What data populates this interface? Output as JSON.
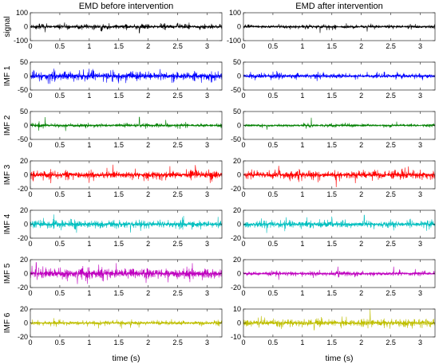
{
  "chart_data": [
    {
      "type": "line",
      "title": "EMD before intervention",
      "xlabel": "time (s)",
      "xlim": [
        0,
        3.25
      ],
      "xticks": [
        "0",
        "0.5",
        "1",
        "1.5",
        "2",
        "2.5",
        "3"
      ],
      "panels": [
        {
          "ylabel": "signal",
          "ylim": [
            -100,
            100
          ],
          "yticks": [
            "100",
            "0",
            "-100"
          ],
          "amplitude": 25,
          "spikes": [
            [
              0.25,
              -40
            ],
            [
              0.58,
              30
            ],
            [
              1.2,
              -30
            ],
            [
              1.85,
              -45
            ],
            [
              2.5,
              25
            ]
          ],
          "color": "#000000"
        },
        {
          "ylabel": "IMF 1",
          "ylim": [
            -50,
            50
          ],
          "yticks": [
            "50",
            "0",
            "-50"
          ],
          "amplitude": 24,
          "spikes": [
            [
              0.3,
              -28
            ],
            [
              0.9,
              24
            ],
            [
              1.5,
              -26
            ],
            [
              2.2,
              25
            ],
            [
              2.9,
              -24
            ]
          ],
          "color": "#0000ff"
        },
        {
          "ylabel": "IMF 2",
          "ylim": [
            -50,
            50
          ],
          "yticks": [
            "50",
            "0",
            "-50"
          ],
          "amplitude": 10,
          "spikes": [
            [
              0.25,
              30
            ],
            [
              0.6,
              -20
            ],
            [
              1.85,
              30
            ],
            [
              2.3,
              20
            ]
          ],
          "color": "#008000"
        },
        {
          "ylabel": "IMF 3",
          "ylim": [
            -20,
            20
          ],
          "yticks": [
            "20",
            "0",
            "-20"
          ],
          "amplitude": 9,
          "spikes": [
            [
              0.35,
              -12
            ],
            [
              1.3,
              10
            ],
            [
              2.8,
              14
            ]
          ],
          "color": "#ff0000"
        },
        {
          "ylabel": "IMF 4",
          "ylim": [
            -20,
            20
          ],
          "yticks": [
            "20",
            "0",
            "-20"
          ],
          "amplitude": 9,
          "spikes": [
            [
              0.4,
              14
            ],
            [
              1.7,
              -12
            ],
            [
              2.6,
              12
            ]
          ],
          "color": "#00bfbf"
        },
        {
          "ylabel": "IMF 5",
          "ylim": [
            -20,
            20
          ],
          "yticks": [
            "20",
            "0",
            "-20"
          ],
          "amplitude": 12,
          "spikes": [
            [
              0.1,
              16
            ],
            [
              0.8,
              -15
            ],
            [
              2.75,
              15
            ]
          ],
          "color": "#bf00bf"
        },
        {
          "ylabel": "IMF 6",
          "ylim": [
            -20,
            20
          ],
          "yticks": [
            "20",
            "0",
            "-20"
          ],
          "amplitude": 5,
          "spikes": [
            [
              0.4,
              7
            ],
            [
              1.7,
              -7
            ]
          ],
          "color": "#bfbf00"
        }
      ]
    },
    {
      "type": "line",
      "title": "EMD after intervention",
      "xlabel": "time (s)",
      "xlim": [
        0,
        3.25
      ],
      "xticks": [
        "0",
        "0.5",
        "1",
        "1.5",
        "2",
        "2.5",
        "3"
      ],
      "panels": [
        {
          "ylabel": "",
          "ylim": [
            -100,
            100
          ],
          "yticks": [
            "100",
            "0",
            "-100"
          ],
          "amplitude": 18,
          "spikes": [
            [
              1.3,
              -45
            ],
            [
              2.1,
              -35
            ],
            [
              0.6,
              20
            ]
          ],
          "color": "#000000"
        },
        {
          "ylabel": "",
          "ylim": [
            -50,
            50
          ],
          "yticks": [
            "50",
            "0",
            "-50"
          ],
          "amplitude": 13,
          "spikes": [
            [
              0.5,
              16
            ],
            [
              1.25,
              -18
            ],
            [
              2.1,
              15
            ]
          ],
          "color": "#0000ff"
        },
        {
          "ylabel": "",
          "ylim": [
            -50,
            50
          ],
          "yticks": [
            "50",
            "0",
            "-50"
          ],
          "amplitude": 8,
          "spikes": [
            [
              1.15,
              28
            ],
            [
              0.4,
              -15
            ],
            [
              2.6,
              14
            ]
          ],
          "color": "#008000"
        },
        {
          "ylabel": "",
          "ylim": [
            -20,
            20
          ],
          "yticks": [
            "20",
            "0",
            "-20"
          ],
          "amplitude": 9,
          "spikes": [
            [
              0.6,
              13
            ],
            [
              1.9,
              -12
            ],
            [
              2.8,
              12
            ]
          ],
          "color": "#ff0000"
        },
        {
          "ylabel": "",
          "ylim": [
            -20,
            20
          ],
          "yticks": [
            "20",
            "0",
            "-20"
          ],
          "amplitude": 8,
          "spikes": [
            [
              2.05,
              13
            ],
            [
              0.7,
              -10
            ],
            [
              1.5,
              11
            ]
          ],
          "color": "#00bfbf"
        },
        {
          "ylabel": "",
          "ylim": [
            -20,
            20
          ],
          "yticks": [
            "20",
            "0",
            "-20"
          ],
          "amplitude": 5,
          "spikes": [
            [
              0.6,
              -9
            ],
            [
              1.6,
              10
            ],
            [
              2.55,
              10
            ]
          ],
          "color": "#bf00bf"
        },
        {
          "ylabel": "",
          "ylim": [
            -10,
            10
          ],
          "yticks": [
            "10",
            "0",
            "-10"
          ],
          "amplitude": 4,
          "spikes": [
            [
              2.15,
              10
            ],
            [
              0.3,
              5
            ],
            [
              1.2,
              -5
            ]
          ],
          "color": "#bfbf00"
        }
      ]
    }
  ]
}
